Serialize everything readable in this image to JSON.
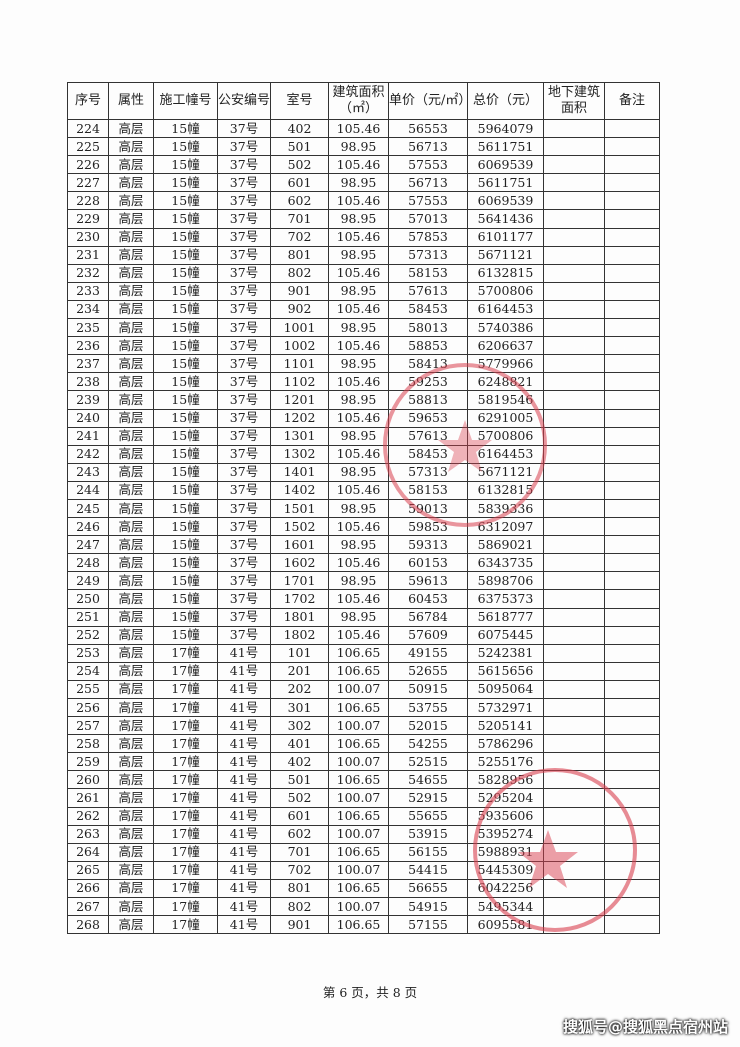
{
  "headers": [
    "序号",
    "属性",
    "施工幢号",
    "公安编号",
    "室号",
    "建筑面积（㎡）",
    "单价（元/㎡）",
    "总价（元）",
    "地下建筑面积",
    "备注"
  ],
  "rows": [
    [
      "224",
      "高层",
      "15幢",
      "37号",
      "402",
      "105.46",
      "56553",
      "5964079"
    ],
    [
      "225",
      "高层",
      "15幢",
      "37号",
      "501",
      "98.95",
      "56713",
      "5611751"
    ],
    [
      "226",
      "高层",
      "15幢",
      "37号",
      "502",
      "105.46",
      "57553",
      "6069539"
    ],
    [
      "227",
      "高层",
      "15幢",
      "37号",
      "601",
      "98.95",
      "56713",
      "5611751"
    ],
    [
      "228",
      "高层",
      "15幢",
      "37号",
      "602",
      "105.46",
      "57553",
      "6069539"
    ],
    [
      "229",
      "高层",
      "15幢",
      "37号",
      "701",
      "98.95",
      "57013",
      "5641436"
    ],
    [
      "230",
      "高层",
      "15幢",
      "37号",
      "702",
      "105.46",
      "57853",
      "6101177"
    ],
    [
      "231",
      "高层",
      "15幢",
      "37号",
      "801",
      "98.95",
      "57313",
      "5671121"
    ],
    [
      "232",
      "高层",
      "15幢",
      "37号",
      "802",
      "105.46",
      "58153",
      "6132815"
    ],
    [
      "233",
      "高层",
      "15幢",
      "37号",
      "901",
      "98.95",
      "57613",
      "5700806"
    ],
    [
      "234",
      "高层",
      "15幢",
      "37号",
      "902",
      "105.46",
      "58453",
      "6164453"
    ],
    [
      "235",
      "高层",
      "15幢",
      "37号",
      "1001",
      "98.95",
      "58013",
      "5740386"
    ],
    [
      "236",
      "高层",
      "15幢",
      "37号",
      "1002",
      "105.46",
      "58853",
      "6206637"
    ],
    [
      "237",
      "高层",
      "15幢",
      "37号",
      "1101",
      "98.95",
      "58413",
      "5779966"
    ],
    [
      "238",
      "高层",
      "15幢",
      "37号",
      "1102",
      "105.46",
      "59253",
      "6248821"
    ],
    [
      "239",
      "高层",
      "15幢",
      "37号",
      "1201",
      "98.95",
      "58813",
      "5819546"
    ],
    [
      "240",
      "高层",
      "15幢",
      "37号",
      "1202",
      "105.46",
      "59653",
      "6291005"
    ],
    [
      "241",
      "高层",
      "15幢",
      "37号",
      "1301",
      "98.95",
      "57613",
      "5700806"
    ],
    [
      "242",
      "高层",
      "15幢",
      "37号",
      "1302",
      "105.46",
      "58453",
      "6164453"
    ],
    [
      "243",
      "高层",
      "15幢",
      "37号",
      "1401",
      "98.95",
      "57313",
      "5671121"
    ],
    [
      "244",
      "高层",
      "15幢",
      "37号",
      "1402",
      "105.46",
      "58153",
      "6132815"
    ],
    [
      "245",
      "高层",
      "15幢",
      "37号",
      "1501",
      "98.95",
      "59013",
      "5839336"
    ],
    [
      "246",
      "高层",
      "15幢",
      "37号",
      "1502",
      "105.46",
      "59853",
      "6312097"
    ],
    [
      "247",
      "高层",
      "15幢",
      "37号",
      "1601",
      "98.95",
      "59313",
      "5869021"
    ],
    [
      "248",
      "高层",
      "15幢",
      "37号",
      "1602",
      "105.46",
      "60153",
      "6343735"
    ],
    [
      "249",
      "高层",
      "15幢",
      "37号",
      "1701",
      "98.95",
      "59613",
      "5898706"
    ],
    [
      "250",
      "高层",
      "15幢",
      "37号",
      "1702",
      "105.46",
      "60453",
      "6375373"
    ],
    [
      "251",
      "高层",
      "15幢",
      "37号",
      "1801",
      "98.95",
      "56784",
      "5618777"
    ],
    [
      "252",
      "高层",
      "15幢",
      "37号",
      "1802",
      "105.46",
      "57609",
      "6075445"
    ],
    [
      "253",
      "高层",
      "17幢",
      "41号",
      "101",
      "106.65",
      "49155",
      "5242381"
    ],
    [
      "254",
      "高层",
      "17幢",
      "41号",
      "201",
      "106.65",
      "52655",
      "5615656"
    ],
    [
      "255",
      "高层",
      "17幢",
      "41号",
      "202",
      "100.07",
      "50915",
      "5095064"
    ],
    [
      "256",
      "高层",
      "17幢",
      "41号",
      "301",
      "106.65",
      "53755",
      "5732971"
    ],
    [
      "257",
      "高层",
      "17幢",
      "41号",
      "302",
      "100.07",
      "52015",
      "5205141"
    ],
    [
      "258",
      "高层",
      "17幢",
      "41号",
      "401",
      "106.65",
      "54255",
      "5786296"
    ],
    [
      "259",
      "高层",
      "17幢",
      "41号",
      "402",
      "100.07",
      "52515",
      "5255176"
    ],
    [
      "260",
      "高层",
      "17幢",
      "41号",
      "501",
      "106.65",
      "54655",
      "5828956"
    ],
    [
      "261",
      "高层",
      "17幢",
      "41号",
      "502",
      "100.07",
      "52915",
      "5295204"
    ],
    [
      "262",
      "高层",
      "17幢",
      "41号",
      "601",
      "106.65",
      "55655",
      "5935606"
    ],
    [
      "263",
      "高层",
      "17幢",
      "41号",
      "602",
      "100.07",
      "53915",
      "5395274"
    ],
    [
      "264",
      "高层",
      "17幢",
      "41号",
      "701",
      "106.65",
      "56155",
      "5988931"
    ],
    [
      "265",
      "高层",
      "17幢",
      "41号",
      "702",
      "100.07",
      "54415",
      "5445309"
    ],
    [
      "266",
      "高层",
      "17幢",
      "41号",
      "801",
      "106.65",
      "56655",
      "6042256"
    ],
    [
      "267",
      "高层",
      "17幢",
      "41号",
      "802",
      "100.07",
      "54915",
      "5495344"
    ],
    [
      "268",
      "高层",
      "17幢",
      "41号",
      "901",
      "106.65",
      "57155",
      "6095581"
    ]
  ],
  "footer": "第 6 页，共 8 页",
  "watermark": "搜狐号@搜狐黑点宿州站",
  "stamp_color": "#d9404f"
}
